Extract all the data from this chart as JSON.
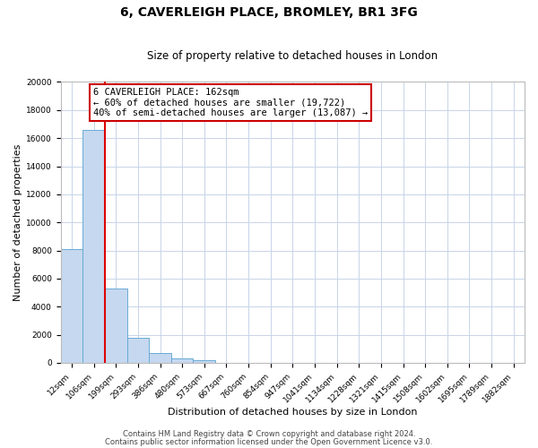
{
  "title": "6, CAVERLEIGH PLACE, BROMLEY, BR1 3FG",
  "subtitle": "Size of property relative to detached houses in London",
  "xlabel": "Distribution of detached houses by size in London",
  "ylabel": "Number of detached properties",
  "bin_labels": [
    "12sqm",
    "106sqm",
    "199sqm",
    "293sqm",
    "386sqm",
    "480sqm",
    "573sqm",
    "667sqm",
    "760sqm",
    "854sqm",
    "947sqm",
    "1041sqm",
    "1134sqm",
    "1228sqm",
    "1321sqm",
    "1415sqm",
    "1508sqm",
    "1602sqm",
    "1695sqm",
    "1789sqm",
    "1882sqm"
  ],
  "bar_values": [
    8100,
    16600,
    5300,
    1800,
    700,
    300,
    200,
    0,
    0,
    0,
    0,
    0,
    0,
    0,
    0,
    0,
    0,
    0,
    0,
    0,
    0
  ],
  "bar_color": "#c5d8f0",
  "bar_edge_color": "#6aaad4",
  "red_line_color": "#dd0000",
  "annotation_text": "6 CAVERLEIGH PLACE: 162sqm\n← 60% of detached houses are smaller (19,722)\n40% of semi-detached houses are larger (13,087) →",
  "annotation_box_color": "#ffffff",
  "annotation_box_edge": "#cc0000",
  "ylim": [
    0,
    20000
  ],
  "yticks": [
    0,
    2000,
    4000,
    6000,
    8000,
    10000,
    12000,
    14000,
    16000,
    18000,
    20000
  ],
  "footer1": "Contains HM Land Registry data © Crown copyright and database right 2024.",
  "footer2": "Contains public sector information licensed under the Open Government Licence v3.0.",
  "bg_color": "#ffffff",
  "grid_color": "#c8d4e8",
  "title_fontsize": 10,
  "subtitle_fontsize": 8.5,
  "axis_label_fontsize": 8,
  "tick_fontsize": 6.5,
  "footer_fontsize": 6,
  "annot_fontsize": 7.5
}
